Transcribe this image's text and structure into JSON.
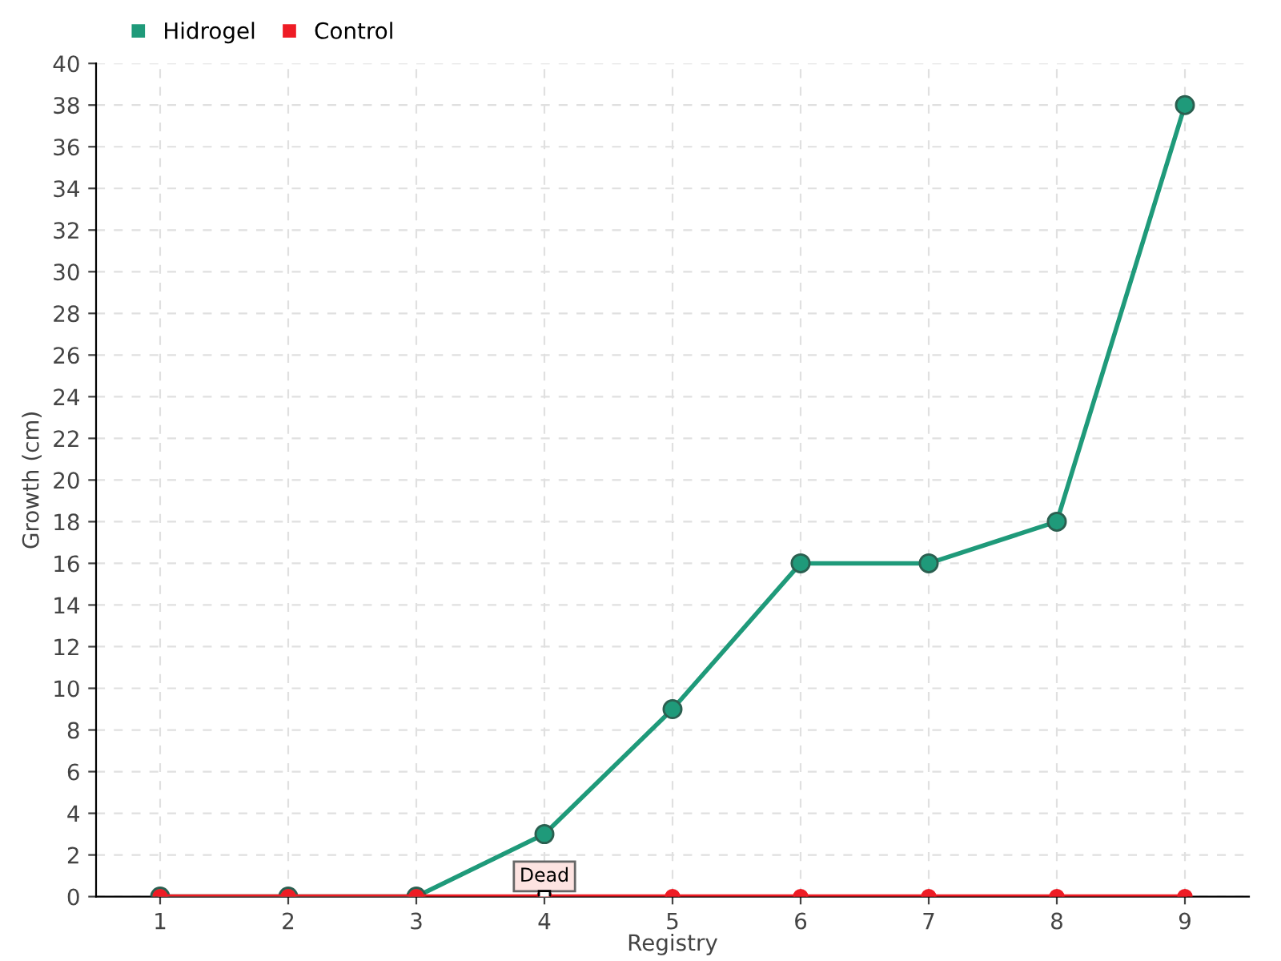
{
  "chart_data": {
    "type": "line",
    "xlabel": "Registry",
    "ylabel": "Growth (cm)",
    "categories": [
      "1",
      "2",
      "3",
      "4",
      "5",
      "6",
      "7",
      "8",
      "9"
    ],
    "series": [
      {
        "name": "Hidrogel",
        "color": "#1f9a7a",
        "values": [
          0,
          0,
          0,
          3,
          9,
          16,
          16,
          18,
          38
        ]
      },
      {
        "name": "Control",
        "color": "#ee1c25",
        "values": [
          0,
          0,
          0,
          0,
          0,
          0,
          0,
          0,
          0
        ]
      }
    ],
    "annotations": [
      {
        "text": "Dead",
        "x": "4",
        "y": 0
      }
    ],
    "ylim": [
      0,
      40
    ],
    "yticks": [
      0,
      2,
      4,
      6,
      8,
      10,
      12,
      14,
      16,
      18,
      20,
      22,
      24,
      26,
      28,
      30,
      32,
      34,
      36,
      38,
      40
    ],
    "grid": true,
    "legend": "top left",
    "marker": "circle",
    "line_style": "solid"
  }
}
